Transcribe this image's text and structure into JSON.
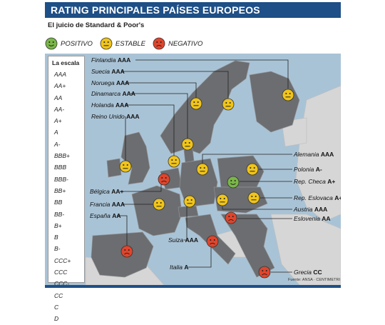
{
  "header": {
    "title": "RATING PRINCIPALES PAÍSES EUROPEOS",
    "subtitle": "El juicio de Standard & Poor's"
  },
  "legend": [
    {
      "label": "POSITIVO",
      "face": "positive-face-icon",
      "color": "#7ab648"
    },
    {
      "label": "ESTABLE",
      "face": "neutral-face-icon",
      "color": "#f0c419"
    },
    {
      "label": "NEGATIVO",
      "face": "negative-face-icon",
      "color": "#e0452c"
    }
  ],
  "scale": {
    "title": "La escala",
    "items": [
      "AAA",
      "AA+",
      "AA",
      "AA-",
      "A+",
      "A",
      "A-",
      "BBB+",
      "BBB",
      "BBB-",
      "BB+",
      "BB",
      "BB-",
      "B+",
      "B",
      "B-",
      "CCC+",
      "CCC",
      "CCC-",
      "CC",
      "C",
      "D"
    ]
  },
  "countries": {
    "finlandia": {
      "name": "Finlandia",
      "rating": "AAA",
      "outlook": "estable"
    },
    "suecia": {
      "name": "Suecia",
      "rating": "AAA",
      "outlook": "estable"
    },
    "noruega": {
      "name": "Noruega",
      "rating": "AAA",
      "outlook": "estable"
    },
    "dinamarca": {
      "name": "Dinamarca",
      "rating": "AAA",
      "outlook": "estable"
    },
    "holanda": {
      "name": "Holanda",
      "rating": "AAA",
      "outlook": "estable"
    },
    "reino_unido": {
      "name": "Reino Unido",
      "rating": "AAA",
      "outlook": "estable"
    },
    "belgica": {
      "name": "Bélgica",
      "rating": "AA+",
      "outlook": "negativo"
    },
    "francia": {
      "name": "Francia",
      "rating": "AAA",
      "outlook": "estable"
    },
    "espana": {
      "name": "España",
      "rating": "AA",
      "outlook": "negativo"
    },
    "suiza": {
      "name": "Suiza",
      "rating": "AAA",
      "outlook": "estable"
    },
    "italia": {
      "name": "Italia",
      "rating": "A",
      "outlook": "negativo"
    },
    "alemania": {
      "name": "Alemania",
      "rating": "AAA",
      "outlook": "estable"
    },
    "polonia": {
      "name": "Polonia",
      "rating": "A-",
      "outlook": "estable"
    },
    "rep_checa": {
      "name": "Rep. Checa",
      "rating": "A+",
      "outlook": "positivo"
    },
    "rep_eslovaca": {
      "name": "Rep. Eslovaca",
      "rating": "A+",
      "outlook": "estable"
    },
    "austria": {
      "name": "Austria",
      "rating": "AAA",
      "outlook": "estable"
    },
    "eslovenia": {
      "name": "Eslovenia",
      "rating": "AA",
      "outlook": "negativo"
    },
    "grecia": {
      "name": "Grecia",
      "rating": "CC",
      "outlook": "negativo"
    }
  },
  "colors": {
    "header_bar": "#1e4f86",
    "sea": "#a9c3d6",
    "rated_land": "#6b6d70",
    "other_land": "#d6d6d6",
    "positive": "#7ab648",
    "stable": "#f0c419",
    "negative": "#e0452c"
  },
  "source": "Fuente: ANSA · CENTIMETRI"
}
